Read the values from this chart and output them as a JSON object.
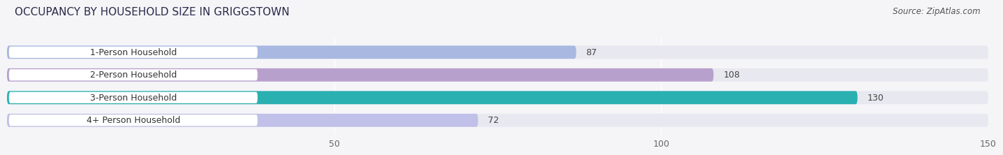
{
  "title": "OCCUPANCY BY HOUSEHOLD SIZE IN GRIGGSTOWN",
  "source": "Source: ZipAtlas.com",
  "categories": [
    "1-Person Household",
    "2-Person Household",
    "3-Person Household",
    "4+ Person Household"
  ],
  "values": [
    87,
    108,
    130,
    72
  ],
  "bar_colors": [
    "#a8b8e0",
    "#b8a0cc",
    "#2ab0b0",
    "#c0c0e8"
  ],
  "bar_bg_color": "#e8e8f0",
  "label_box_color": "#ffffff",
  "xlim": [
    0,
    150
  ],
  "xticks": [
    50,
    100,
    150
  ],
  "title_fontsize": 11,
  "source_fontsize": 8.5,
  "label_fontsize": 9,
  "value_fontsize": 9,
  "background_color": "#f5f5f8"
}
